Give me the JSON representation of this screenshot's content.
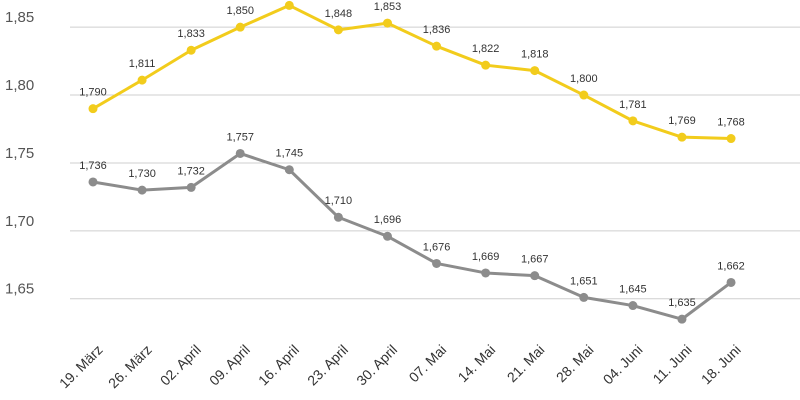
{
  "chart_data": {
    "type": "line",
    "categories": [
      "19. März",
      "26. März",
      "02. April",
      "09. April",
      "16. April",
      "23. April",
      "30. April",
      "07. Mai",
      "14. Mai",
      "21. Mai",
      "28. Mai",
      "04. Juni",
      "11. Juni",
      "18. Juni"
    ],
    "series": [
      {
        "color": "#f2cc1c",
        "values": [
          1.79,
          1.811,
          1.833,
          1.85,
          1.866,
          1.848,
          1.853,
          1.836,
          1.822,
          1.818,
          1.8,
          1.781,
          1.769,
          1.768
        ],
        "value_labels": [
          "1,790",
          "1,811",
          "1,833",
          "1,850",
          null,
          "1,848",
          "1,853",
          "1,836",
          "1,822",
          "1,818",
          "1,800",
          "1,781",
          "1,769",
          "1,768"
        ]
      },
      {
        "color": "#8c8c8c",
        "values": [
          1.736,
          1.73,
          1.732,
          1.757,
          1.745,
          1.71,
          1.696,
          1.676,
          1.669,
          1.667,
          1.651,
          1.645,
          1.635,
          1.662
        ],
        "value_labels": [
          "1,736",
          "1,730",
          "1,732",
          "1,757",
          "1,745",
          "1,710",
          "1,696",
          "1,676",
          "1,669",
          "1,667",
          "1,651",
          "1,645",
          "1,635",
          "1,662"
        ]
      }
    ],
    "ylim": [
      1.627,
      1.87
    ],
    "yticks": [
      {
        "value": 1.65,
        "label": "1,65"
      },
      {
        "value": 1.7,
        "label": "1,70"
      },
      {
        "value": 1.75,
        "label": "1,75"
      },
      {
        "value": 1.8,
        "label": "1,80"
      },
      {
        "value": 1.85,
        "label": "1,85"
      }
    ],
    "grid": true
  }
}
